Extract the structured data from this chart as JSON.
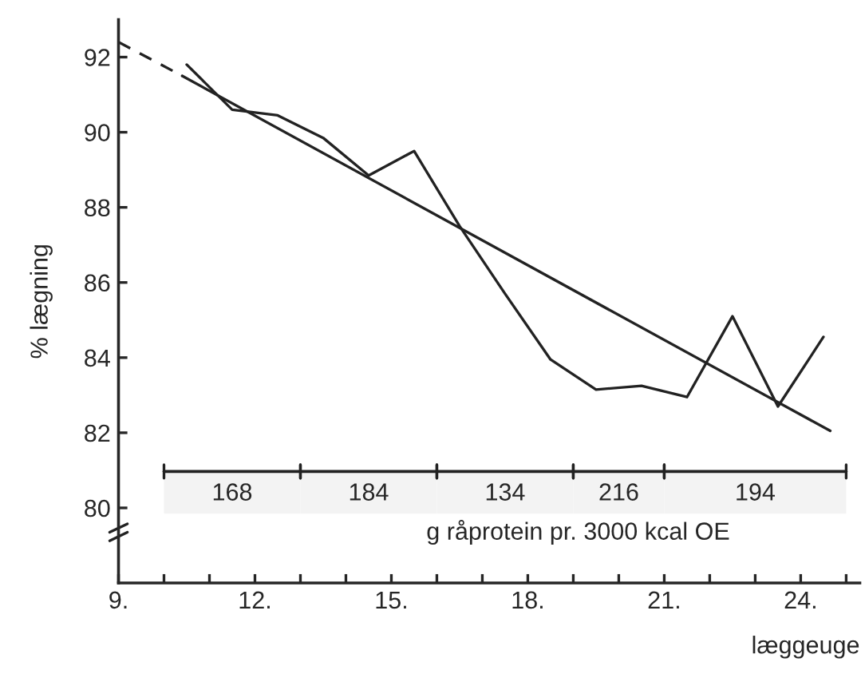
{
  "chart_data": {
    "type": "line",
    "xlabel": "læggeuge",
    "ylabel": "% lægning",
    "x": [
      10.5,
      11.5,
      12.5,
      13.5,
      14.5,
      15.5,
      16.5,
      17.5,
      18.5,
      19.5,
      20.5,
      21.5,
      22.5,
      23.5,
      24.5
    ],
    "series": [
      {
        "color": "#222222",
        "values": [
          91.8,
          90.6,
          90.45,
          89.85,
          88.85,
          89.5,
          87.5,
          85.7,
          83.95,
          83.15,
          83.25,
          82.95,
          85.1,
          82.7,
          84.55
        ]
      },
      {
        "color": "#222222",
        "x": [
          10.4,
          24.65
        ],
        "values": [
          91.5,
          82.05
        ]
      },
      {
        "color": "#222222",
        "x": [
          9,
          10.4
        ],
        "values": [
          92.4,
          91.5
        ],
        "line_style": "dashed"
      }
    ],
    "xlim": [
      9,
      25.3
    ],
    "ylim": [
      78,
      93
    ],
    "xticks": [
      {
        "value": 9,
        "label": "9."
      },
      {
        "value": 10,
        "label": null
      },
      {
        "value": 11,
        "label": null
      },
      {
        "value": 12,
        "label": "12."
      },
      {
        "value": 13,
        "label": null
      },
      {
        "value": 14,
        "label": null
      },
      {
        "value": 15,
        "label": "15."
      },
      {
        "value": 16,
        "label": null
      },
      {
        "value": 17,
        "label": null
      },
      {
        "value": 18,
        "label": "18."
      },
      {
        "value": 19,
        "label": null
      },
      {
        "value": 20,
        "label": null
      },
      {
        "value": 21,
        "label": "21."
      },
      {
        "value": 22,
        "label": null
      },
      {
        "value": 23,
        "label": null
      },
      {
        "value": 24,
        "label": "24."
      },
      {
        "value": 25,
        "label": null
      }
    ],
    "yticks": [
      80,
      82,
      84,
      86,
      88,
      90,
      92
    ],
    "bands": [
      {
        "axis": "x",
        "from": 10,
        "to": 13,
        "label": "168"
      },
      {
        "axis": "x",
        "from": 13,
        "to": 16,
        "label": "184"
      },
      {
        "axis": "x",
        "from": 16,
        "to": 19,
        "label": "134"
      },
      {
        "axis": "x",
        "from": 19,
        "to": 21,
        "label": "216"
      },
      {
        "axis": "x",
        "from": 21,
        "to": 25,
        "label": "194"
      }
    ],
    "annotations": [
      "g råprotein pr. 3000 kcal OE"
    ],
    "line_style": "solid",
    "marker": "none",
    "grid": false,
    "legend": false
  }
}
